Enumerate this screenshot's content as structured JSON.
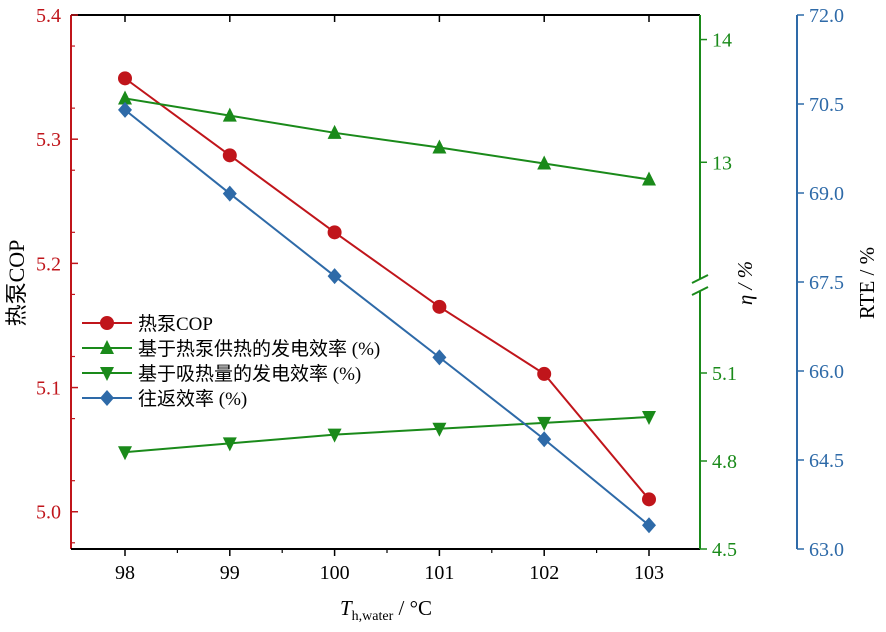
{
  "chart_data": {
    "type": "line",
    "xlabel_main": "T",
    "xlabel_sub": "h,water",
    "xlabel_unit": " / °C",
    "categories": [
      "98",
      "99",
      "100",
      "101",
      "102",
      "103"
    ],
    "x": [
      98,
      99,
      100,
      101,
      102,
      103
    ],
    "left_axis": {
      "label": "热泵COP",
      "color": "#c0151b",
      "range": [
        4.97,
        5.4
      ],
      "ticks": [
        "5.0",
        "5.1",
        "5.2",
        "5.3",
        "5.4"
      ]
    },
    "middle_axis": {
      "label": "η / %",
      "color": "#1a8a1a",
      "broken": true,
      "upper_segment": {
        "range": [
          12.0,
          14.2
        ],
        "ticks": [
          "13",
          "14"
        ]
      },
      "lower_segment": {
        "range": [
          4.5,
          5.4
        ],
        "ticks": [
          "4.5",
          "4.8",
          "5.1"
        ]
      }
    },
    "right_axis": {
      "label": "RTE / %",
      "color": "#2e6aa8",
      "range": [
        63.0,
        72.0
      ],
      "ticks": [
        "63.0",
        "64.5",
        "66.0",
        "67.5",
        "69.0",
        "70.5",
        "72.0"
      ]
    },
    "series": [
      {
        "name": "热泵COP",
        "axis": "left",
        "color": "#c0151b",
        "marker": "circle",
        "values": [
          5.349,
          5.287,
          5.225,
          5.165,
          5.111,
          5.01
        ]
      },
      {
        "name": "基于热泵供热的发电效率 (%)",
        "axis": "middle-upper",
        "color": "#1a8a1a",
        "marker": "triangle-up",
        "values": [
          13.52,
          13.38,
          13.24,
          13.12,
          12.99,
          12.86
        ]
      },
      {
        "name": "基于吸热量的发电效率 (%)",
        "axis": "middle-lower",
        "color": "#1a8a1a",
        "marker": "triangle-down",
        "values": [
          4.83,
          4.86,
          4.89,
          4.91,
          4.93,
          4.95
        ]
      },
      {
        "name": "往返效率 (%)",
        "axis": "right",
        "color": "#2e6aa8",
        "marker": "diamond",
        "values": [
          70.4,
          68.99,
          67.6,
          66.23,
          64.85,
          63.4
        ]
      }
    ],
    "legend_placement": "left-middle",
    "grid": false
  }
}
